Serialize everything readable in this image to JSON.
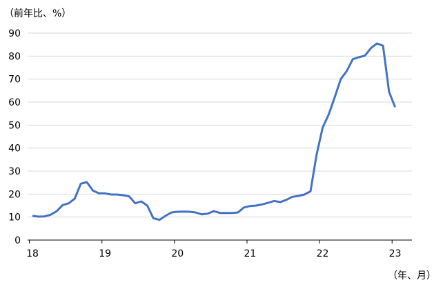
{
  "chart_data": {
    "type": "line",
    "title": "",
    "ylabel": "（前年比、%）",
    "xlabel": "（年、月）",
    "ylim": [
      0,
      90
    ],
    "yticks": [
      0,
      10,
      20,
      30,
      40,
      50,
      60,
      70,
      80,
      90
    ],
    "xtick_labels": [
      "18",
      "19",
      "20",
      "21",
      "22",
      "23"
    ],
    "x_start": "2018-01",
    "x_end": "2023-01",
    "frequency": "monthly",
    "grid": true,
    "line_color": "#4472C4",
    "series": [
      {
        "values": [
          10.5,
          10.2,
          10.3,
          11,
          12.5,
          15.2,
          16,
          18,
          24.5,
          25.2,
          21.5,
          20.3,
          20.3,
          19.8,
          19.8,
          19.5,
          19,
          16,
          16.8,
          15,
          9.5,
          8.8,
          10.5,
          12,
          12.3,
          12.4,
          12.3,
          12,
          11.2,
          11.5,
          12.6,
          11.8,
          11.8,
          11.8,
          12,
          14.2,
          14.8,
          15,
          15.5,
          16.2,
          17,
          16.5,
          17.5,
          18.8,
          19.2,
          19.8,
          21.2,
          37,
          48.8,
          54.5,
          62,
          70,
          73.5,
          78.7,
          79.5,
          80.2,
          83.5,
          85.5,
          84.5,
          64.5,
          57.8
        ]
      }
    ]
  }
}
